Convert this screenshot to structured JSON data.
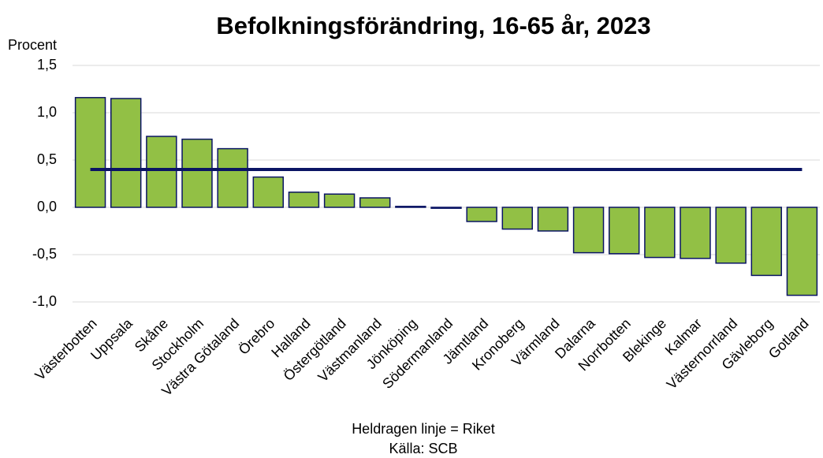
{
  "chart_data": {
    "type": "bar",
    "title": "Befolkningsförändring, 16-65 år, 2023",
    "y_label": "Procent",
    "annotations": [
      "Heldragen linje = Riket",
      "Källa: SCB"
    ],
    "categories": [
      "Västerbotten",
      "Uppsala",
      "Skåne",
      "Stockholm",
      "Västra Götaland",
      "Örebro",
      "Halland",
      "Östergötland",
      "Västmanland",
      "Jönköping",
      "Södermanland",
      "Jämtland",
      "Kronoberg",
      "Värmland",
      "Dalarna",
      "Norrbotten",
      "Blekinge",
      "Kalmar",
      "Västernorrland",
      "Gävleborg",
      "Gotland"
    ],
    "series": [
      {
        "type": "bar",
        "color": "#92c045",
        "values": [
          1.16,
          1.15,
          0.75,
          0.72,
          0.62,
          0.32,
          0.16,
          0.14,
          0.1,
          0.01,
          -0.01,
          -0.15,
          -0.23,
          -0.25,
          -0.48,
          -0.49,
          -0.53,
          -0.54,
          -0.59,
          -0.72,
          -0.93
        ]
      },
      {
        "type": "line",
        "color": "#0a1464",
        "values": [
          0.4,
          0.4,
          0.4,
          0.4,
          0.4,
          0.4,
          0.4,
          0.4,
          0.4,
          0.4,
          0.4,
          0.4,
          0.4,
          0.4,
          0.4,
          0.4,
          0.4,
          0.4,
          0.4,
          0.4,
          0.4
        ]
      }
    ],
    "ylim": [
      -1.0,
      1.5
    ],
    "yticks": [
      {
        "value": 1.5,
        "label": "1,5"
      },
      {
        "value": 1.0,
        "label": "1,0"
      },
      {
        "value": 0.5,
        "label": "0,5"
      },
      {
        "value": 0,
        "label": "0,0"
      },
      {
        "value": -0.5,
        "label": "-0,5"
      },
      {
        "value": -1.0,
        "label": "-1,0"
      }
    ],
    "grid": true
  }
}
